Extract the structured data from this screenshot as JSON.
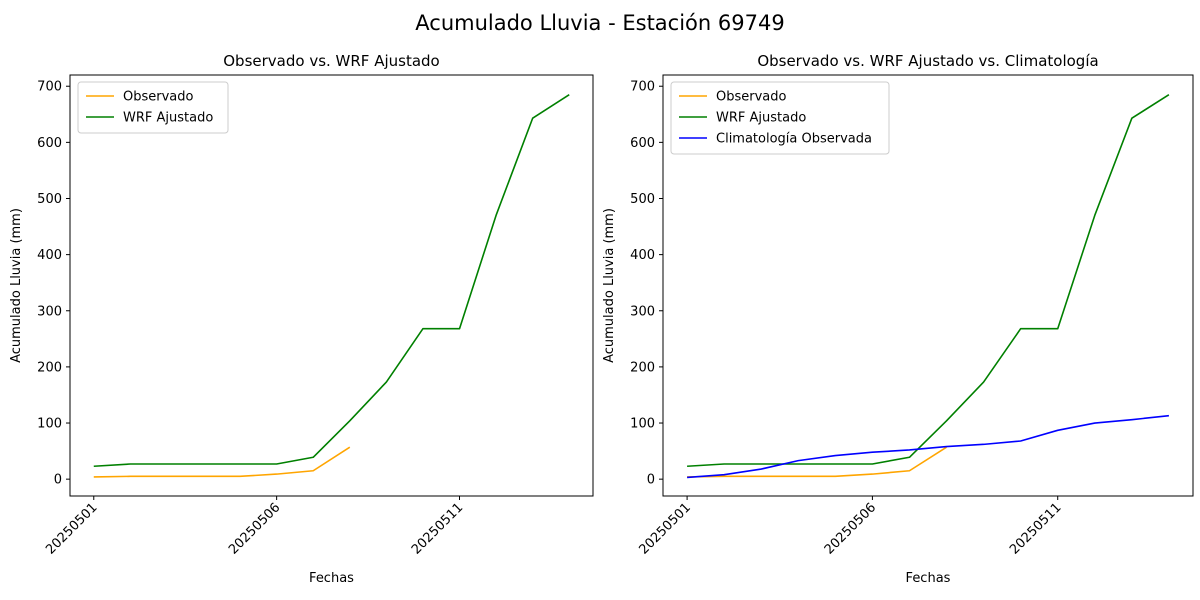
{
  "figure": {
    "title": "Acumulado Lluvia - Estación 69749"
  },
  "chart_data": [
    {
      "type": "line",
      "title": "Observado vs. WRF Ajustado",
      "xlabel": "Fechas",
      "ylabel": "Acumulado Lluvia (mm)",
      "x": [
        "20250501",
        "20250502",
        "20250503",
        "20250504",
        "20250505",
        "20250506",
        "20250507",
        "20250508",
        "20250509",
        "20250510",
        "20250511",
        "20250512",
        "20250513",
        "20250514"
      ],
      "xticks": [
        "20250501",
        "20250506",
        "20250511"
      ],
      "yticks": [
        0,
        100,
        200,
        300,
        400,
        500,
        600,
        700
      ],
      "ylim": [
        -30,
        720
      ],
      "legend": "top-left",
      "grid": false,
      "series": [
        {
          "name": "Observado",
          "color": "#ffa500",
          "values": [
            4,
            5,
            5,
            5,
            5,
            9,
            15,
            57,
            null,
            null,
            null,
            null,
            null,
            null
          ]
        },
        {
          "name": "WRF Ajustado",
          "color": "#008000",
          "values": [
            23,
            27,
            27,
            27,
            27,
            27,
            39,
            104,
            173,
            268,
            268,
            470,
            643,
            685
          ]
        }
      ]
    },
    {
      "type": "line",
      "title": "Observado vs. WRF Ajustado vs. Climatología",
      "xlabel": "Fechas",
      "ylabel": "Acumulado Lluvia (mm)",
      "x": [
        "20250501",
        "20250502",
        "20250503",
        "20250504",
        "20250505",
        "20250506",
        "20250507",
        "20250508",
        "20250509",
        "20250510",
        "20250511",
        "20250512",
        "20250513",
        "20250514"
      ],
      "xticks": [
        "20250501",
        "20250506",
        "20250511"
      ],
      "yticks": [
        0,
        100,
        200,
        300,
        400,
        500,
        600,
        700
      ],
      "ylim": [
        -30,
        720
      ],
      "legend": "top-left",
      "grid": false,
      "series": [
        {
          "name": "Observado",
          "color": "#ffa500",
          "values": [
            4,
            5,
            5,
            5,
            5,
            9,
            15,
            57,
            null,
            null,
            null,
            null,
            null,
            null
          ]
        },
        {
          "name": "WRF Ajustado",
          "color": "#008000",
          "values": [
            23,
            27,
            27,
            27,
            27,
            27,
            39,
            104,
            173,
            268,
            268,
            470,
            643,
            685
          ]
        },
        {
          "name": "Climatología Observada",
          "color": "#0000ff",
          "values": [
            3,
            8,
            18,
            33,
            42,
            48,
            52,
            58,
            62,
            68,
            87,
            100,
            106,
            113
          ]
        }
      ]
    }
  ]
}
